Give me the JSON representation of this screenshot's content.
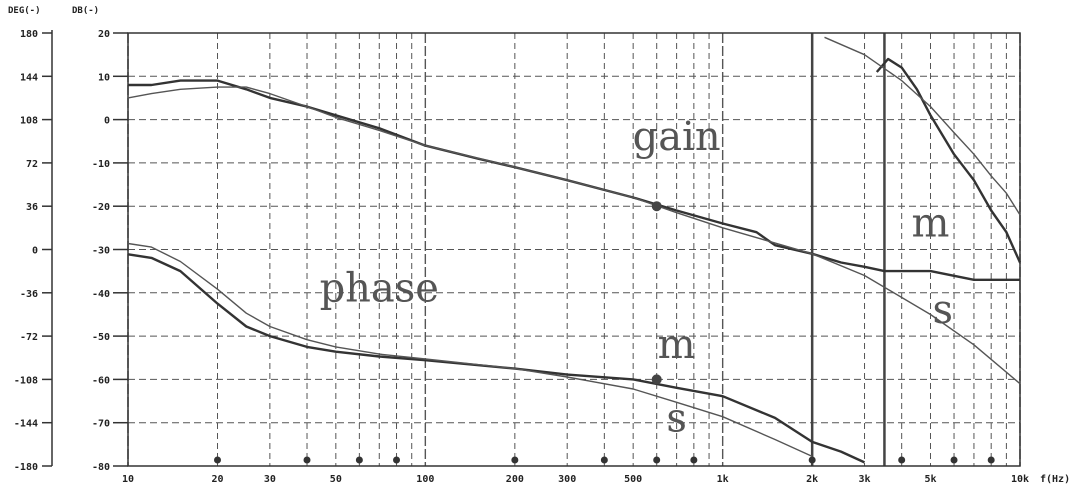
{
  "chart_data": {
    "type": "line",
    "axes": {
      "x": {
        "label": "f(Hz)",
        "scale": "log",
        "range": [
          10,
          10000
        ],
        "tick_labels": [
          "10",
          "20",
          "30",
          "50",
          "100",
          "200",
          "300",
          "500",
          "1k",
          "2k",
          "3k",
          "5k",
          "10k"
        ]
      },
      "y_phase": {
        "label": "DEG(-)",
        "range": [
          -180,
          180
        ],
        "tick_labels": [
          "180",
          "144",
          "108",
          "72",
          "36",
          "0",
          "-36",
          "-72",
          "-108",
          "-144",
          "-180"
        ]
      },
      "y_gain": {
        "label": "DB(-)",
        "range": [
          -80,
          20
        ],
        "tick_labels": [
          "20",
          "10",
          "0",
          "-10",
          "-20",
          "-30",
          "-40",
          "-50",
          "-60",
          "-70",
          "-80"
        ]
      }
    },
    "grid": true,
    "series": [
      {
        "name": "m",
        "group": "gain",
        "axis": "y_gain",
        "x": [
          10,
          12,
          15,
          20,
          25,
          30,
          40,
          50,
          70,
          100,
          150,
          200,
          300,
          500,
          700,
          1000,
          1300,
          1500,
          2000,
          2500,
          3000,
          3500,
          5000,
          7000,
          10000
        ],
        "y": [
          8,
          8,
          9,
          9,
          7,
          5,
          3,
          1,
          -2,
          -6,
          -9,
          -11,
          -14,
          -18,
          -21,
          -24,
          -26,
          -29,
          -31,
          -33,
          -34,
          -35,
          -35,
          -37,
          -37
        ]
      },
      {
        "name": "s",
        "group": "gain",
        "axis": "y_gain",
        "x": [
          10,
          12,
          15,
          20,
          25,
          30,
          40,
          50,
          70,
          100,
          200,
          300,
          500,
          700,
          1000,
          2000,
          3000,
          5000,
          7000,
          10000
        ],
        "y": [
          5,
          6,
          7,
          7.5,
          7.5,
          6,
          3,
          0.5,
          -2.5,
          -6,
          -11,
          -14,
          -18,
          -21.5,
          -25,
          -31,
          -36,
          -45,
          -52,
          -61
        ]
      },
      {
        "name": "m",
        "group": "gain_hf",
        "axis": "y_gain",
        "x": [
          3300,
          3600,
          4000,
          4500,
          5000,
          6000,
          7000,
          8000,
          9000,
          10000
        ],
        "y": [
          11,
          14,
          12,
          7,
          1,
          -8,
          -14,
          -21,
          -26,
          -33
        ]
      },
      {
        "name": "s",
        "group": "gain_hf",
        "axis": "y_gain",
        "x": [
          2200,
          3000,
          4000,
          5000,
          6000,
          7000,
          8000,
          9000,
          10000
        ],
        "y": [
          19,
          15,
          9,
          3,
          -3,
          -8,
          -13,
          -17,
          -22
        ]
      },
      {
        "name": "m",
        "group": "phase",
        "axis": "y_phase",
        "x": [
          10,
          12,
          15,
          20,
          25,
          30,
          40,
          50,
          70,
          100,
          200,
          300,
          500,
          700,
          1000,
          1500,
          2000,
          2500,
          3000
        ],
        "y": [
          -4,
          -7,
          -18,
          -45,
          -64,
          -72,
          -81,
          -85,
          -89,
          -92,
          -99,
          -104,
          -108,
          -115,
          -122,
          -140,
          -160,
          -168,
          -177
        ]
      },
      {
        "name": "s",
        "group": "phase",
        "axis": "y_phase",
        "x": [
          10,
          12,
          15,
          20,
          25,
          30,
          40,
          50,
          70,
          100,
          200,
          300,
          500,
          700,
          1000,
          1500,
          2000
        ],
        "y": [
          5,
          2,
          -10,
          -33,
          -53,
          -64,
          -75,
          -81,
          -87,
          -91,
          -99,
          -106,
          -116,
          -127,
          -139,
          -158,
          -172
        ]
      }
    ],
    "annotations": [
      {
        "text": "gain",
        "x": 700,
        "y_gain": -7
      },
      {
        "text": "phase",
        "x": 70,
        "y_gain": -42
      },
      {
        "text": "m",
        "x": 700,
        "y_gain": -55
      },
      {
        "text": "s",
        "x": 700,
        "y_gain": -72
      },
      {
        "text": "m",
        "x": 5000,
        "y_gain": -27
      },
      {
        "text": "s",
        "x": 5500,
        "y_gain": -47
      }
    ]
  }
}
